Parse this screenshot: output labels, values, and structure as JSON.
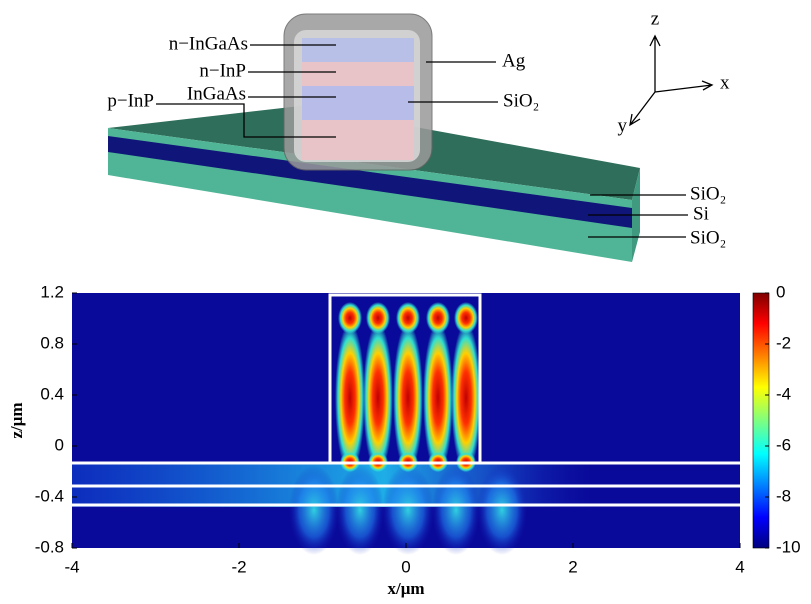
{
  "diagram": {
    "layers": [
      "n−InGaAs",
      "n−InP",
      "InGaAs",
      "p−InP"
    ],
    "shell": [
      "Ag",
      "SiO₂"
    ],
    "waveguide": [
      "SiO₂",
      "Si",
      "SiO₂"
    ],
    "axes": [
      "z",
      "x",
      "y"
    ]
  },
  "chart_data": {
    "type": "heatmap",
    "xlabel": "x/μm",
    "ylabel": "z/μm",
    "xlim": [
      -4,
      4
    ],
    "xticks": [
      -4,
      -2,
      0,
      2,
      4
    ],
    "ylim": [
      -0.8,
      1.2
    ],
    "yticks": [
      -0.8,
      -0.4,
      0,
      0.4,
      0.8,
      1.2
    ],
    "colorbar": {
      "lim": [
        -10,
        0
      ],
      "ticks": [
        -10,
        -8,
        -6,
        -4,
        -2,
        0
      ]
    }
  }
}
